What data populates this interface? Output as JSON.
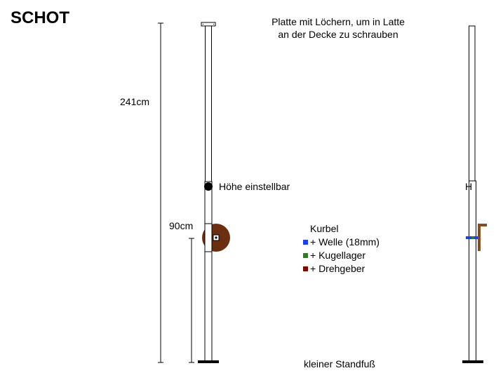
{
  "title": "SCHOT",
  "note": {
    "line1": "Platte mit Löchern, um in Latte",
    "line2": "an der Decke zu schrauben"
  },
  "dimensions": {
    "total_height": "241cm",
    "crank_height": "90cm"
  },
  "labels": {
    "adjustable": "Höhe einstellbar",
    "foot": "kleiner Standfuß",
    "side_adjustable_fragment": "H"
  },
  "legend": {
    "title": "Kurbel",
    "items": [
      {
        "label": "+ Welle (18mm)",
        "color": "#1f3bff"
      },
      {
        "label": "+ Kugellager",
        "color": "#2e7d1e"
      },
      {
        "label": "+ Drehgeber",
        "color": "#7a0a00"
      }
    ]
  },
  "colors": {
    "crank_disc": "#6b2f10",
    "shaft": "#1f3bff",
    "lever": "#8b4a1c"
  }
}
